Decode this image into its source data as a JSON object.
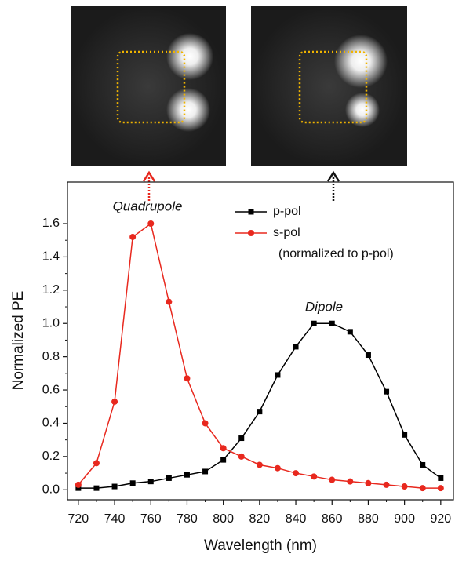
{
  "chart_data": {
    "type": "line",
    "x_label": "Wavelength (nm)",
    "y_label": "Normalized PE",
    "x": [
      720,
      730,
      740,
      750,
      760,
      770,
      780,
      790,
      800,
      810,
      820,
      830,
      840,
      850,
      860,
      870,
      880,
      890,
      900,
      910,
      920
    ],
    "series": [
      {
        "name": "p-pol",
        "color": "#000000",
        "marker": "square",
        "values": [
          0.01,
          0.01,
          0.02,
          0.04,
          0.05,
          0.07,
          0.09,
          0.11,
          0.18,
          0.31,
          0.47,
          0.69,
          0.86,
          1.0,
          1.0,
          0.95,
          0.81,
          0.59,
          0.33,
          0.15,
          0.07
        ]
      },
      {
        "name": "s-pol",
        "color": "#e8281e",
        "marker": "circle",
        "values": [
          0.03,
          0.16,
          0.53,
          1.52,
          1.6,
          1.13,
          0.67,
          0.4,
          0.25,
          0.2,
          0.15,
          0.13,
          0.1,
          0.08,
          0.06,
          0.05,
          0.04,
          0.03,
          0.02,
          0.01,
          0.01
        ]
      }
    ],
    "legend_note": "(normalized to p-pol)",
    "annotations": [
      "Quadrupole",
      "Dipole"
    ],
    "xlim": [
      714,
      927
    ],
    "ylim": [
      -0.06,
      1.85
    ],
    "xticks": [
      720,
      740,
      760,
      780,
      800,
      820,
      840,
      860,
      880,
      900,
      920
    ],
    "yticks": [
      {
        "value": 0,
        "label": "0.0"
      },
      0.2,
      0.4,
      0.6,
      0.8,
      {
        "value": 1,
        "label": "1.0"
      },
      1.2,
      1.4,
      1.6
    ]
  }
}
